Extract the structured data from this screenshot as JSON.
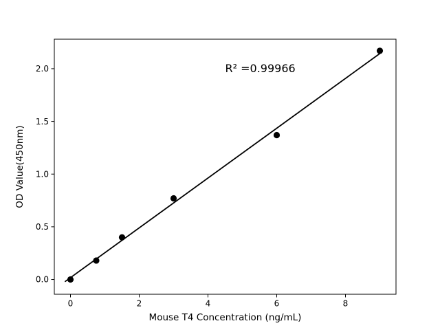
{
  "figure": {
    "background": "#ffffff",
    "text_color": "#000000"
  },
  "chart_data": {
    "type": "scatter",
    "title": "",
    "xlabel": "Mouse T4 Concentration (ng/mL)",
    "ylabel": "OD Value(450nm)",
    "x": [
      0,
      0.75,
      1.5,
      3,
      6,
      9
    ],
    "y": [
      0.0,
      0.18,
      0.4,
      0.77,
      1.37,
      2.17
    ],
    "fit_line": {
      "slope": 0.2363,
      "intercept": 0.0174,
      "x_start": -0.15,
      "x_end": 9.0
    },
    "annotation": {
      "text": "R² =0.99966",
      "x": 4.5,
      "y": 2.0
    },
    "xticks": {
      "values": [
        0,
        2,
        4,
        6,
        8
      ],
      "labels": [
        "0",
        "2",
        "4",
        "6",
        "8"
      ]
    },
    "yticks": {
      "values": [
        0.0,
        0.5,
        1.0,
        1.5,
        2.0
      ],
      "labels": [
        "0.0",
        "0.5",
        "1.0",
        "1.5",
        "2.0"
      ]
    },
    "xlim": [
      -0.47,
      9.47
    ],
    "ylim": [
      -0.14,
      2.28
    ],
    "grid": false,
    "legend": null,
    "marker_color": "#000000",
    "line_color": "#000000",
    "spine_color": "#000000"
  }
}
